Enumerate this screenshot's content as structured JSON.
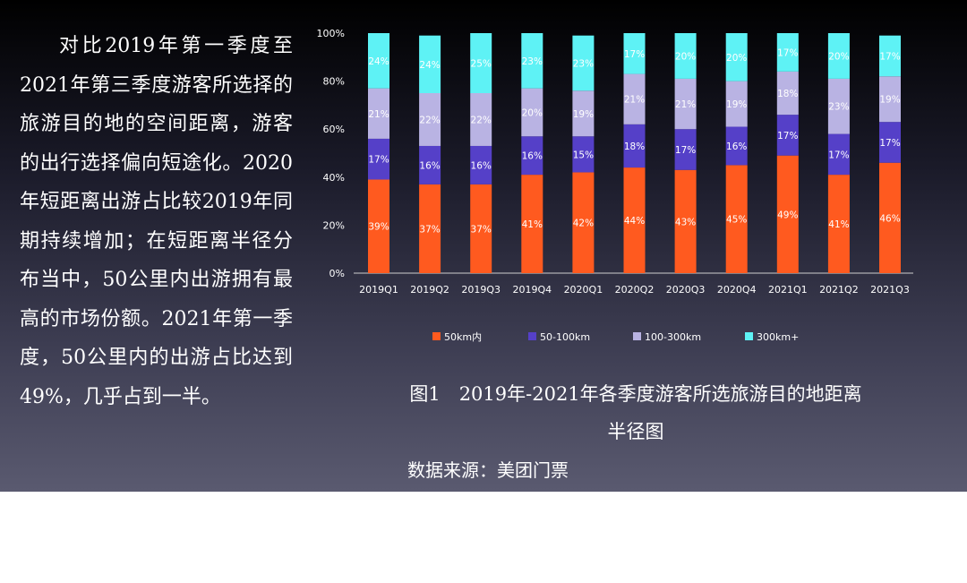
{
  "text": {
    "paragraph": "对比2019年第一季度至2021年第三季度游客所选择的旅游目的地的空间距离，游客的出行选择偏向短途化。2020年短距离出游占比较2019年同期持续增加；在短距离半径分布当中，50公里内出游拥有最高的市场份额。2021年第一季度，50公里内的出游占比达到49%，几乎占到一半。",
    "caption_line1": "图1　2019年-2021年各季度游客所选旅游目的地距离",
    "caption_line2": "半径图",
    "source": "数据来源：美团门票"
  },
  "chart_data": {
    "type": "bar",
    "stacked": true,
    "percent": true,
    "categories": [
      "2019Q1",
      "2019Q2",
      "2019Q3",
      "2019Q4",
      "2020Q1",
      "2020Q2",
      "2020Q3",
      "2020Q4",
      "2021Q1",
      "2021Q2",
      "2021Q3"
    ],
    "ylim": [
      0,
      100
    ],
    "yticks": [
      0,
      20,
      40,
      60,
      80,
      100
    ],
    "ytick_labels": [
      "0%",
      "20%",
      "40%",
      "60%",
      "80%",
      "100%"
    ],
    "legend_position": "bottom",
    "series": [
      {
        "name": "50km内",
        "color": "#ff5a1f",
        "values": [
          39,
          37,
          37,
          41,
          42,
          44,
          43,
          45,
          49,
          41,
          46
        ]
      },
      {
        "name": "50-100km",
        "color": "#5540c8",
        "values": [
          17,
          16,
          16,
          16,
          15,
          18,
          17,
          16,
          17,
          17,
          17
        ]
      },
      {
        "name": "100-300km",
        "color": "#b9b3e3",
        "values": [
          21,
          22,
          22,
          20,
          19,
          21,
          21,
          19,
          18,
          23,
          19
        ]
      },
      {
        "name": "300km+",
        "color": "#5ef2f5",
        "values": [
          24,
          24,
          25,
          23,
          23,
          17,
          20,
          20,
          17,
          20,
          17
        ]
      }
    ]
  }
}
